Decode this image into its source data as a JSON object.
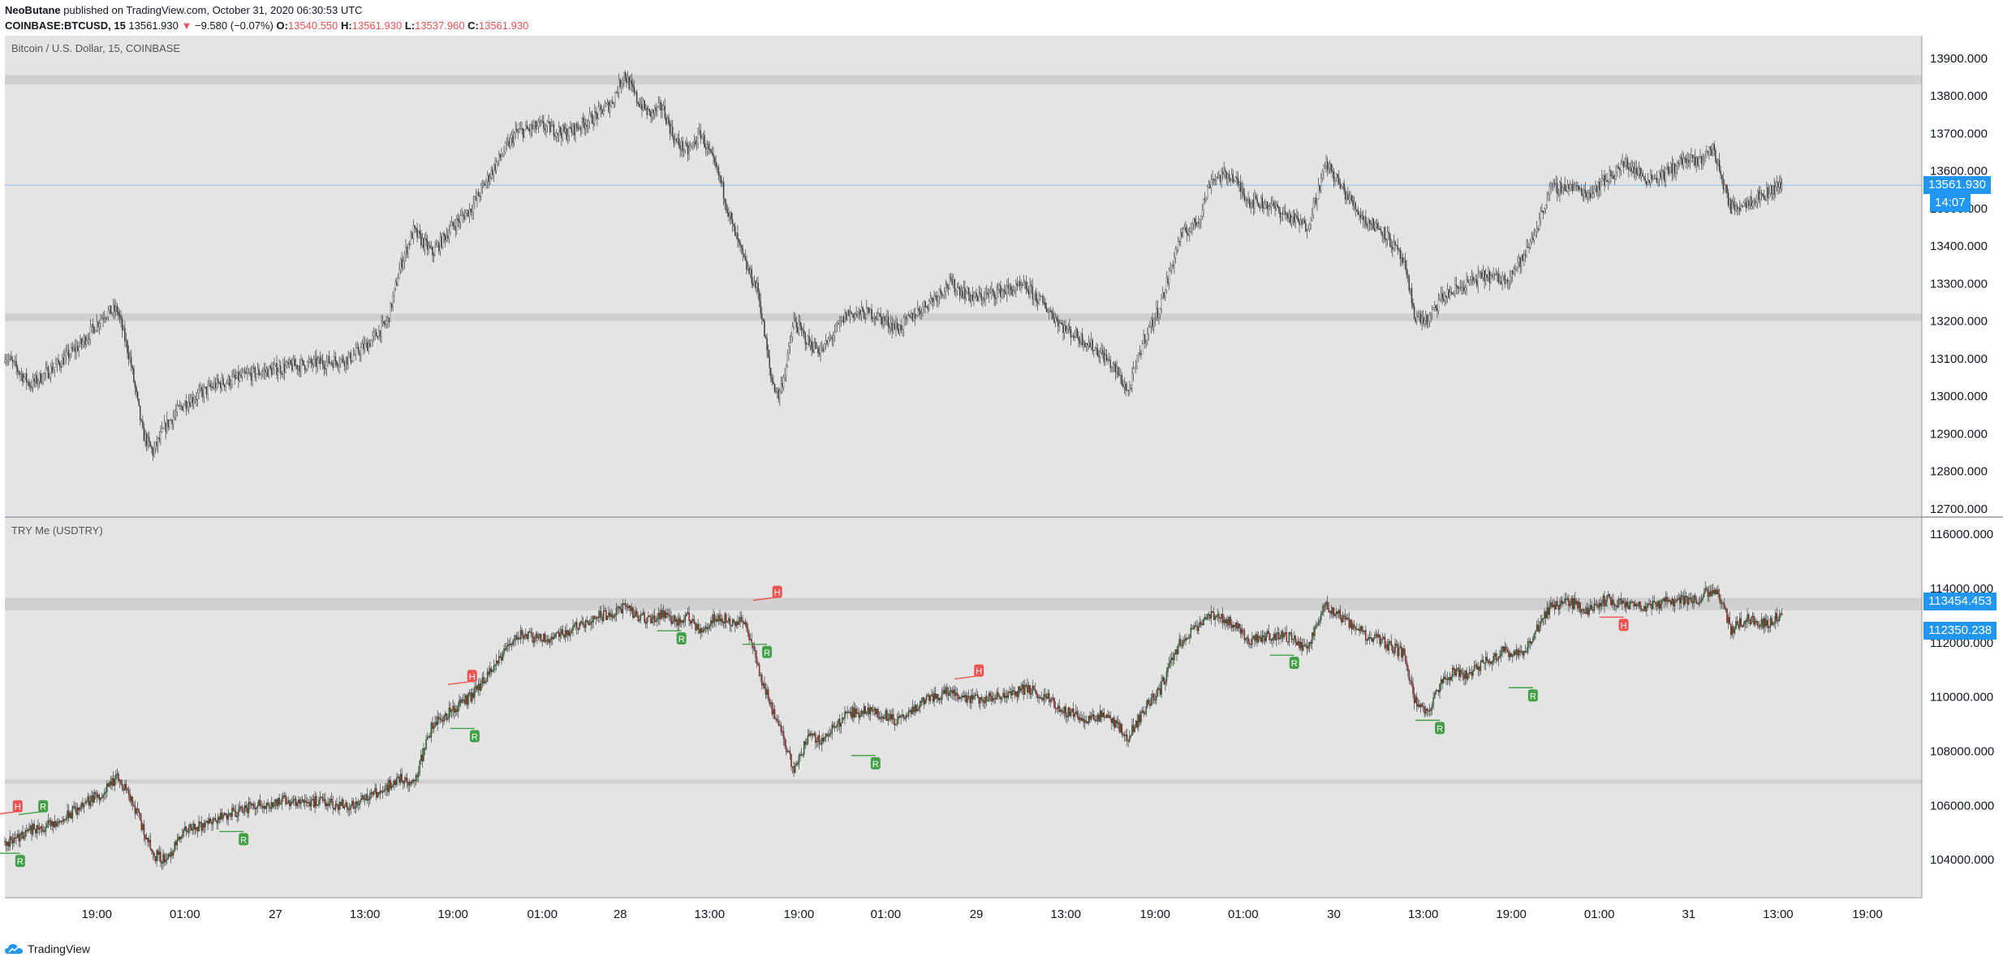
{
  "header": {
    "author": "NeoButane",
    "published": "published on TradingView.com, October 31, 2020 06:30:53 UTC",
    "symbol": "COINBASE:BTCUSD, 15",
    "last": "13561.930",
    "change": "−9.580 (−0.07%)",
    "o_label": "O:",
    "o": "13540.550",
    "h_label": "H:",
    "h": "13561.930",
    "l_label": "L:",
    "l": "13537.960",
    "c_label": "C:",
    "c": "13561.930"
  },
  "footer": {
    "brand": "TradingView"
  },
  "colors": {
    "pane": "#e4e4e4",
    "zone": "#d0d0d0",
    "accent": "#2196f3",
    "up": "#26a69a",
    "down": "#ef5350",
    "rLabel": "#43a047",
    "hLabel": "#ef5350"
  },
  "chart_data": [
    {
      "type": "candlestick",
      "title": "Bitcoin / U.S. Dollar, 15, COINBASE",
      "ylim": [
        12680,
        13960
      ],
      "yticks": [
        "13900.000",
        "13800.000",
        "13700.000",
        "13600.000",
        "13500.000",
        "13400.000",
        "13300.000",
        "13200.000",
        "13100.000",
        "13000.000",
        "12900.000",
        "12800.000",
        "12700.000"
      ],
      "ytick_values": [
        13900,
        13800,
        13700,
        13600,
        13500,
        13400,
        13300,
        13200,
        13100,
        13000,
        12900,
        12800,
        12700
      ],
      "resistance_zones": [
        [
          13830,
          13855
        ],
        [
          13200,
          13220
        ]
      ],
      "last_price": 13561.93,
      "last_price_label": "13561.930",
      "countdown": "14:07",
      "anchors": [
        [
          0,
          13110
        ],
        [
          20,
          13030
        ],
        [
          40,
          13080
        ],
        [
          60,
          13140
        ],
        [
          78,
          13220
        ],
        [
          88,
          13230
        ],
        [
          98,
          13100
        ],
        [
          108,
          12900
        ],
        [
          116,
          12850
        ],
        [
          126,
          12920
        ],
        [
          140,
          12980
        ],
        [
          165,
          13030
        ],
        [
          195,
          13060
        ],
        [
          225,
          13080
        ],
        [
          250,
          13090
        ],
        [
          270,
          13100
        ],
        [
          285,
          13140
        ],
        [
          300,
          13200
        ],
        [
          310,
          13350
        ],
        [
          320,
          13440
        ],
        [
          335,
          13380
        ],
        [
          350,
          13450
        ],
        [
          365,
          13500
        ],
        [
          385,
          13620
        ],
        [
          400,
          13700
        ],
        [
          420,
          13720
        ],
        [
          440,
          13700
        ],
        [
          460,
          13740
        ],
        [
          475,
          13780
        ],
        [
          485,
          13860
        ],
        [
          495,
          13790
        ],
        [
          505,
          13750
        ],
        [
          515,
          13770
        ],
        [
          525,
          13680
        ],
        [
          535,
          13650
        ],
        [
          545,
          13700
        ],
        [
          560,
          13580
        ],
        [
          570,
          13450
        ],
        [
          580,
          13350
        ],
        [
          590,
          13280
        ],
        [
          600,
          13050
        ],
        [
          606,
          13000
        ],
        [
          612,
          13080
        ],
        [
          618,
          13200
        ],
        [
          630,
          13140
        ],
        [
          640,
          13120
        ],
        [
          660,
          13220
        ],
        [
          680,
          13220
        ],
        [
          700,
          13180
        ],
        [
          720,
          13240
        ],
        [
          740,
          13300
        ],
        [
          760,
          13260
        ],
        [
          780,
          13280
        ],
        [
          800,
          13290
        ],
        [
          815,
          13240
        ],
        [
          830,
          13180
        ],
        [
          845,
          13150
        ],
        [
          860,
          13110
        ],
        [
          872,
          13060
        ],
        [
          880,
          13010
        ],
        [
          892,
          13150
        ],
        [
          905,
          13240
        ],
        [
          920,
          13420
        ],
        [
          935,
          13470
        ],
        [
          945,
          13580
        ],
        [
          960,
          13590
        ],
        [
          975,
          13520
        ],
        [
          990,
          13510
        ],
        [
          1005,
          13480
        ],
        [
          1020,
          13450
        ],
        [
          1035,
          13620
        ],
        [
          1050,
          13540
        ],
        [
          1065,
          13470
        ],
        [
          1080,
          13440
        ],
        [
          1095,
          13360
        ],
        [
          1105,
          13210
        ],
        [
          1115,
          13200
        ],
        [
          1125,
          13260
        ],
        [
          1135,
          13280
        ],
        [
          1145,
          13300
        ],
        [
          1160,
          13320
        ],
        [
          1175,
          13310
        ],
        [
          1190,
          13370
        ],
        [
          1200,
          13450
        ],
        [
          1210,
          13550
        ],
        [
          1225,
          13560
        ],
        [
          1240,
          13540
        ],
        [
          1255,
          13580
        ],
        [
          1270,
          13620
        ],
        [
          1285,
          13580
        ],
        [
          1300,
          13590
        ],
        [
          1315,
          13630
        ],
        [
          1325,
          13620
        ],
        [
          1338,
          13660
        ],
        [
          1345,
          13580
        ],
        [
          1352,
          13500
        ],
        [
          1365,
          13520
        ],
        [
          1380,
          13540
        ],
        [
          1390,
          13562
        ]
      ]
    },
    {
      "type": "candlestick",
      "title": "TRY Me (USDTRY)",
      "ylim": [
        102600,
        116600
      ],
      "yticks": [
        "116000.000",
        "114000.000",
        "112000.000",
        "110000.000",
        "108000.000",
        "106000.000",
        "104000.000"
      ],
      "ytick_values": [
        116000,
        114000,
        112000,
        110000,
        108000,
        106000,
        104000
      ],
      "resistance_zones": [
        [
          113200,
          113650
        ],
        [
          106800,
          106960
        ]
      ],
      "last_value_label": "113454.453",
      "second_value_label": "112350.238",
      "anchors": [
        [
          0,
          104600
        ],
        [
          20,
          105100
        ],
        [
          40,
          105300
        ],
        [
          60,
          106000
        ],
        [
          78,
          106500
        ],
        [
          88,
          107000
        ],
        [
          98,
          106300
        ],
        [
          108,
          105200
        ],
        [
          116,
          104200
        ],
        [
          126,
          104000
        ],
        [
          140,
          105000
        ],
        [
          165,
          105500
        ],
        [
          195,
          106000
        ],
        [
          225,
          106200
        ],
        [
          250,
          106100
        ],
        [
          270,
          106000
        ],
        [
          285,
          106300
        ],
        [
          300,
          106700
        ],
        [
          310,
          107000
        ],
        [
          320,
          106800
        ],
        [
          335,
          109000
        ],
        [
          350,
          109500
        ],
        [
          365,
          110000
        ],
        [
          385,
          111200
        ],
        [
          400,
          112300
        ],
        [
          420,
          112100
        ],
        [
          440,
          112400
        ],
        [
          460,
          112900
        ],
        [
          475,
          113100
        ],
        [
          485,
          113300
        ],
        [
          495,
          113000
        ],
        [
          505,
          112800
        ],
        [
          515,
          113100
        ],
        [
          525,
          112800
        ],
        [
          535,
          112900
        ],
        [
          545,
          112500
        ],
        [
          560,
          113000
        ],
        [
          570,
          112700
        ],
        [
          580,
          112800
        ],
        [
          590,
          111000
        ],
        [
          600,
          109700
        ],
        [
          606,
          109000
        ],
        [
          612,
          108200
        ],
        [
          618,
          107300
        ],
        [
          630,
          108600
        ],
        [
          640,
          108400
        ],
        [
          660,
          109400
        ],
        [
          680,
          109500
        ],
        [
          700,
          109100
        ],
        [
          720,
          109900
        ],
        [
          740,
          110200
        ],
        [
          760,
          109900
        ],
        [
          780,
          110000
        ],
        [
          800,
          110300
        ],
        [
          815,
          110000
        ],
        [
          830,
          109500
        ],
        [
          845,
          109200
        ],
        [
          860,
          109300
        ],
        [
          872,
          108900
        ],
        [
          880,
          108500
        ],
        [
          892,
          109500
        ],
        [
          905,
          110300
        ],
        [
          920,
          112000
        ],
        [
          935,
          112600
        ],
        [
          945,
          113000
        ],
        [
          960,
          112800
        ],
        [
          975,
          112100
        ],
        [
          990,
          112300
        ],
        [
          1005,
          112200
        ],
        [
          1020,
          111800
        ],
        [
          1035,
          113400
        ],
        [
          1050,
          112800
        ],
        [
          1065,
          112300
        ],
        [
          1080,
          112000
        ],
        [
          1095,
          111600
        ],
        [
          1105,
          109800
        ],
        [
          1115,
          109300
        ],
        [
          1125,
          110600
        ],
        [
          1135,
          110900
        ],
        [
          1145,
          110800
        ],
        [
          1160,
          111300
        ],
        [
          1175,
          111700
        ],
        [
          1190,
          111600
        ],
        [
          1200,
          112500
        ],
        [
          1210,
          113300
        ],
        [
          1225,
          113500
        ],
        [
          1240,
          113200
        ],
        [
          1255,
          113600
        ],
        [
          1270,
          113400
        ],
        [
          1285,
          113300
        ],
        [
          1300,
          113500
        ],
        [
          1315,
          113600
        ],
        [
          1325,
          113600
        ],
        [
          1338,
          114000
        ],
        [
          1345,
          113500
        ],
        [
          1352,
          112500
        ],
        [
          1365,
          112900
        ],
        [
          1380,
          112700
        ],
        [
          1390,
          113000
        ]
      ],
      "markers": [
        {
          "i": 10,
          "text": "H",
          "kind": "top",
          "value": 105600
        },
        {
          "i": 30,
          "text": "R",
          "kind": "top",
          "value": 105600
        },
        {
          "i": 12,
          "text": "R",
          "kind": "bottom",
          "value": 104300
        },
        {
          "i": 187,
          "text": "R",
          "kind": "bottom",
          "value": 105100
        },
        {
          "i": 366,
          "text": "H",
          "kind": "top",
          "value": 110400
        },
        {
          "i": 368,
          "text": "R",
          "kind": "bottom",
          "value": 108900
        },
        {
          "i": 530,
          "text": "R",
          "kind": "bottom",
          "value": 112500
        },
        {
          "i": 597,
          "text": "R",
          "kind": "bottom",
          "value": 112000
        },
        {
          "i": 605,
          "text": "H",
          "kind": "top",
          "value": 113500
        },
        {
          "i": 682,
          "text": "R",
          "kind": "bottom",
          "value": 107900
        },
        {
          "i": 763,
          "text": "H",
          "kind": "top",
          "value": 110600
        },
        {
          "i": 1010,
          "text": "R",
          "kind": "bottom",
          "value": 111600
        },
        {
          "i": 1124,
          "text": "R",
          "kind": "bottom",
          "value": 109200
        },
        {
          "i": 1197,
          "text": "R",
          "kind": "bottom",
          "value": 110400
        },
        {
          "i": 1268,
          "text": "H",
          "kind": "bottom",
          "value": 113000
        }
      ]
    }
  ],
  "time_axis": [
    {
      "label": "19:00",
      "i": 72
    },
    {
      "label": "01:00",
      "i": 141
    },
    {
      "label": "27",
      "i": 212
    },
    {
      "label": "13:00",
      "i": 282
    },
    {
      "label": "19:00",
      "i": 351
    },
    {
      "label": "01:00",
      "i": 421
    },
    {
      "label": "28",
      "i": 482
    },
    {
      "label": "13:00",
      "i": 552
    },
    {
      "label": "19:00",
      "i": 622
    },
    {
      "label": "01:00",
      "i": 690
    },
    {
      "label": "29",
      "i": 761
    },
    {
      "label": "13:00",
      "i": 831
    },
    {
      "label": "19:00",
      "i": 901
    },
    {
      "label": "01:00",
      "i": 970
    },
    {
      "label": "30",
      "i": 1041
    },
    {
      "label": "13:00",
      "i": 1111
    },
    {
      "label": "19:00",
      "i": 1180
    },
    {
      "label": "01:00",
      "i": 1249
    },
    {
      "label": "31",
      "i": 1319
    },
    {
      "label": "13:00",
      "i": 1389
    },
    {
      "label": "19:00",
      "i": 1459
    }
  ]
}
